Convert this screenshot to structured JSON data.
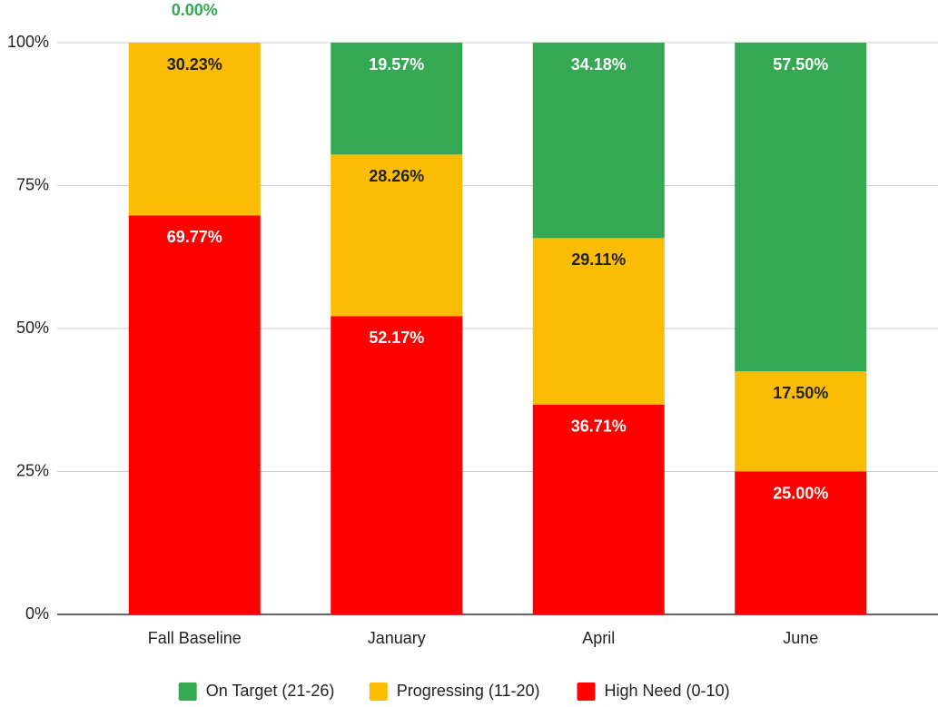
{
  "chart_data": {
    "type": "stacked_bar",
    "categories": [
      "Fall Baseline",
      "January",
      "April",
      "June"
    ],
    "series": [
      {
        "name": "On Target (21-26)",
        "color": "#34a853",
        "values": [
          0,
          19.57,
          34.18,
          57.5
        ],
        "value_labels": [
          "0.00%",
          "19.57%",
          "34.18%",
          "57.50%"
        ]
      },
      {
        "name": "Progressing (11-20)",
        "color": "#fbbc04",
        "values": [
          30.23,
          28.26,
          29.11,
          17.5
        ],
        "value_labels": [
          "30.23%",
          "28.26%",
          "29.11%",
          "17.50%"
        ]
      },
      {
        "name": "High Need (0-10)",
        "color": "#ff0000",
        "values": [
          69.77,
          52.17,
          36.71,
          25
        ],
        "value_labels": [
          "69.77%",
          "52.17%",
          "36.71%",
          "25.00%"
        ]
      }
    ],
    "ylim": [
      0,
      100
    ],
    "yticks": [
      {
        "value": 0,
        "label": "0%"
      },
      {
        "value": 25,
        "label": "25%"
      },
      {
        "value": 50,
        "label": "50%"
      },
      {
        "value": 75,
        "label": "75%"
      },
      {
        "value": 100,
        "label": "100%"
      }
    ],
    "grid": true,
    "legend": "bottom"
  }
}
